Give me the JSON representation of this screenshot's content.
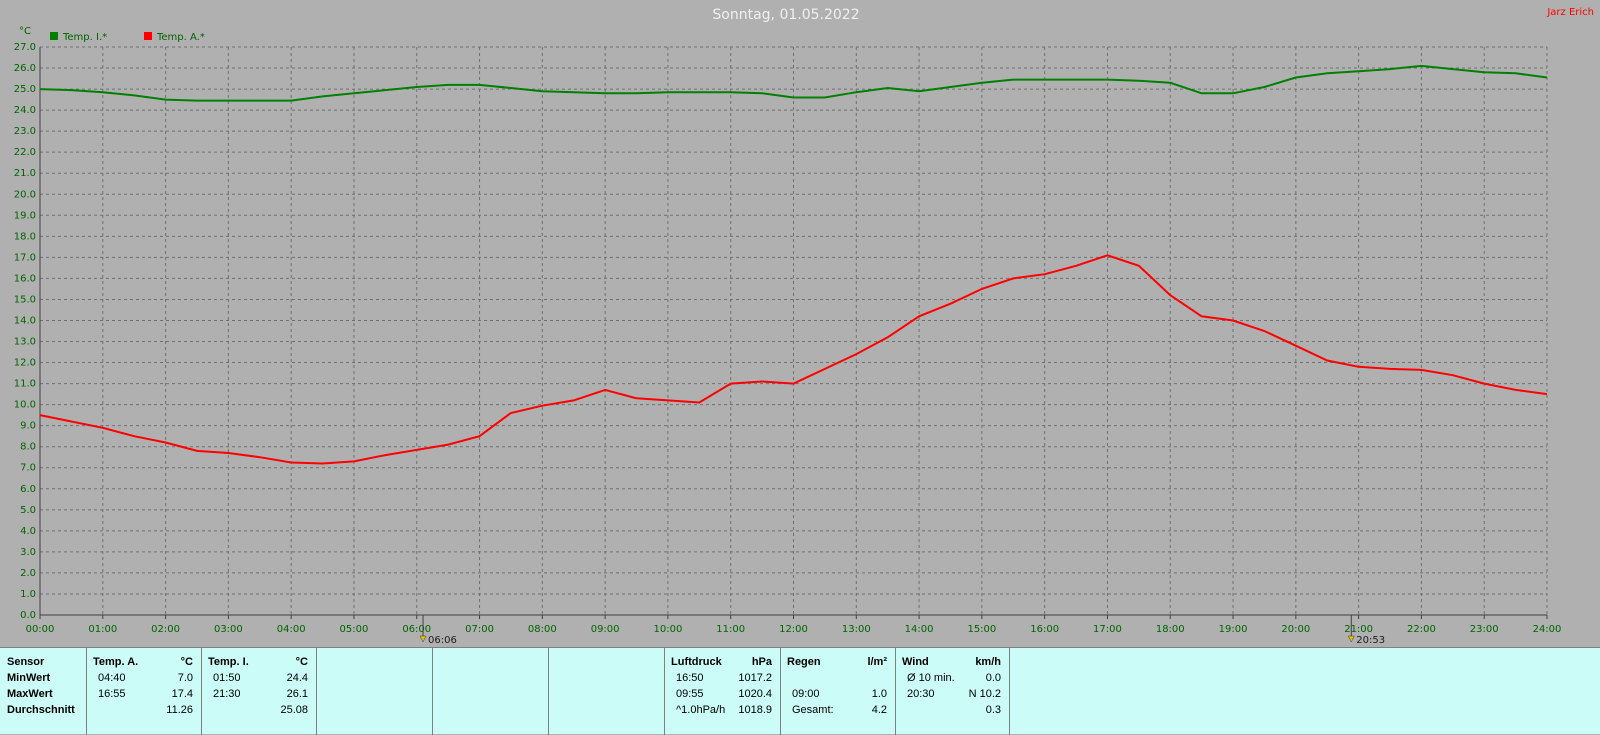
{
  "chart_data": {
    "type": "line",
    "title": "Sonntag, 01.05.2022",
    "author": "Jarz Erich",
    "y_label": "°C",
    "legend": "top-left",
    "grid": true,
    "x": [
      0,
      0.5,
      1,
      1.5,
      2,
      2.5,
      3,
      3.5,
      4,
      4.5,
      5,
      5.5,
      6,
      6.5,
      7,
      7.5,
      8,
      8.5,
      9,
      9.5,
      10,
      10.5,
      11,
      11.5,
      12,
      12.5,
      13,
      13.5,
      14,
      14.5,
      15,
      15.5,
      16,
      16.5,
      17,
      17.5,
      18,
      18.5,
      19,
      19.5,
      20,
      20.5,
      21,
      21.5,
      22,
      22.5,
      23,
      23.5,
      24
    ],
    "series": [
      {
        "name": "Temp. I.*",
        "color": "#008000",
        "values": [
          25.0,
          24.95,
          24.85,
          24.7,
          24.5,
          24.45,
          24.45,
          24.45,
          24.45,
          24.65,
          24.8,
          24.95,
          25.1,
          25.2,
          25.2,
          25.05,
          24.9,
          24.85,
          24.8,
          24.8,
          24.85,
          24.85,
          24.85,
          24.8,
          24.6,
          24.6,
          24.85,
          25.05,
          24.9,
          25.1,
          25.3,
          25.45,
          25.45,
          25.45,
          25.45,
          25.4,
          25.3,
          24.8,
          24.8,
          25.1,
          25.55,
          25.75,
          25.85,
          25.95,
          26.1,
          25.95,
          25.8,
          25.75,
          25.55
        ]
      },
      {
        "name": "Temp. A.*",
        "color": "#ff0000",
        "values": [
          9.5,
          9.2,
          8.9,
          8.5,
          8.2,
          7.8,
          7.7,
          7.5,
          7.25,
          7.2,
          7.3,
          7.6,
          7.85,
          8.1,
          8.5,
          9.6,
          9.95,
          10.2,
          10.7,
          10.3,
          10.2,
          10.1,
          11.0,
          11.1,
          11.0,
          11.7,
          12.4,
          13.2,
          14.2,
          14.8,
          15.5,
          16.0,
          16.2,
          16.6,
          17.1,
          16.6,
          15.2,
          14.2,
          14.0,
          13.5,
          12.8,
          12.1,
          11.8,
          11.7,
          11.65,
          11.4,
          11.0,
          10.7,
          10.5
        ]
      }
    ],
    "xlim": [
      0,
      24
    ],
    "xticks": [
      {
        "value": 0,
        "label": "00:00"
      },
      {
        "value": 1,
        "label": "01:00"
      },
      {
        "value": 2,
        "label": "02:00"
      },
      {
        "value": 3,
        "label": "03:00"
      },
      {
        "value": 4,
        "label": "04:00"
      },
      {
        "value": 5,
        "label": "05:00"
      },
      {
        "value": 6,
        "label": "06:00"
      },
      {
        "value": 7,
        "label": "07:00"
      },
      {
        "value": 8,
        "label": "08:00"
      },
      {
        "value": 9,
        "label": "09:00"
      },
      {
        "value": 10,
        "label": "10:00"
      },
      {
        "value": 11,
        "label": "11:00"
      },
      {
        "value": 12,
        "label": "12:00"
      },
      {
        "value": 13,
        "label": "13:00"
      },
      {
        "value": 14,
        "label": "14:00"
      },
      {
        "value": 15,
        "label": "15:00"
      },
      {
        "value": 16,
        "label": "16:00"
      },
      {
        "value": 17,
        "label": "17:00"
      },
      {
        "value": 18,
        "label": "18:00"
      },
      {
        "value": 19,
        "label": "19:00"
      },
      {
        "value": 20,
        "label": "20:00"
      },
      {
        "value": 21,
        "label": "21:00"
      },
      {
        "value": 22,
        "label": "22:00"
      },
      {
        "value": 23,
        "label": "23:00"
      },
      {
        "value": 24,
        "label": "24:00"
      }
    ],
    "ylim": [
      0,
      27
    ],
    "yticks": [
      {
        "value": 0,
        "label": "0.0"
      },
      {
        "value": 1,
        "label": "1.0"
      },
      {
        "value": 2,
        "label": "2.0"
      },
      {
        "value": 3,
        "label": "3.0"
      },
      {
        "value": 4,
        "label": "4.0"
      },
      {
        "value": 5,
        "label": "5.0"
      },
      {
        "value": 6,
        "label": "6.0"
      },
      {
        "value": 7,
        "label": "7.0"
      },
      {
        "value": 8,
        "label": "8.0"
      },
      {
        "value": 9,
        "label": "9.0"
      },
      {
        "value": 10,
        "label": "10.0"
      },
      {
        "value": 11,
        "label": "11.0"
      },
      {
        "value": 12,
        "label": "12.0"
      },
      {
        "value": 13,
        "label": "13.0"
      },
      {
        "value": 14,
        "label": "14.0"
      },
      {
        "value": 15,
        "label": "15.0"
      },
      {
        "value": 16,
        "label": "16.0"
      },
      {
        "value": 17,
        "label": "17.0"
      },
      {
        "value": 18,
        "label": "18.0"
      },
      {
        "value": 19,
        "label": "19.0"
      },
      {
        "value": 20,
        "label": "20.0"
      },
      {
        "value": 21,
        "label": "21.0"
      },
      {
        "value": 22,
        "label": "22.0"
      },
      {
        "value": 23,
        "label": "23.0"
      },
      {
        "value": 24,
        "label": "24.0"
      },
      {
        "value": 25,
        "label": "25.0"
      },
      {
        "value": 26,
        "label": "26.0"
      },
      {
        "value": 27,
        "label": "27.0"
      }
    ],
    "annotations": [
      {
        "x": 6.1,
        "label": "06:06"
      },
      {
        "x": 20.883,
        "label": "20:53"
      }
    ]
  },
  "summary": {
    "sensor": [
      "Sensor",
      "MinWert",
      "MaxWert",
      "Durchschnitt"
    ],
    "panels": [
      {
        "header": [
          "Temp. A.",
          "°C"
        ],
        "rows": [
          [
            "04:40",
            "7.0"
          ],
          [
            "16:55",
            "17.4"
          ],
          [
            null,
            "11.26"
          ]
        ]
      },
      {
        "header": [
          "Temp. I.",
          "°C"
        ],
        "rows": [
          [
            "01:50",
            "24.4"
          ],
          [
            "21:30",
            "26.1"
          ],
          [
            null,
            "25.08"
          ]
        ]
      },
      {
        "header": [
          "Luftdruck",
          "hPa"
        ],
        "rows": [
          [
            "16:50",
            "1017.2"
          ],
          [
            "09:55",
            "1020.4"
          ],
          [
            "^1.0hPa/h",
            "1018.9"
          ]
        ]
      },
      {
        "header": [
          "Regen",
          "l/m²"
        ],
        "rows": [
          [
            null,
            null
          ],
          [
            "09:00",
            "1.0"
          ],
          [
            "Gesamt:",
            "4.2"
          ]
        ]
      },
      {
        "header": [
          "Wind",
          "km/h"
        ],
        "rows": [
          [
            "Ø 10 min.",
            "0.0"
          ],
          [
            "20:30",
            "N 10.2"
          ],
          [
            null,
            "0.3"
          ]
        ]
      }
    ]
  }
}
